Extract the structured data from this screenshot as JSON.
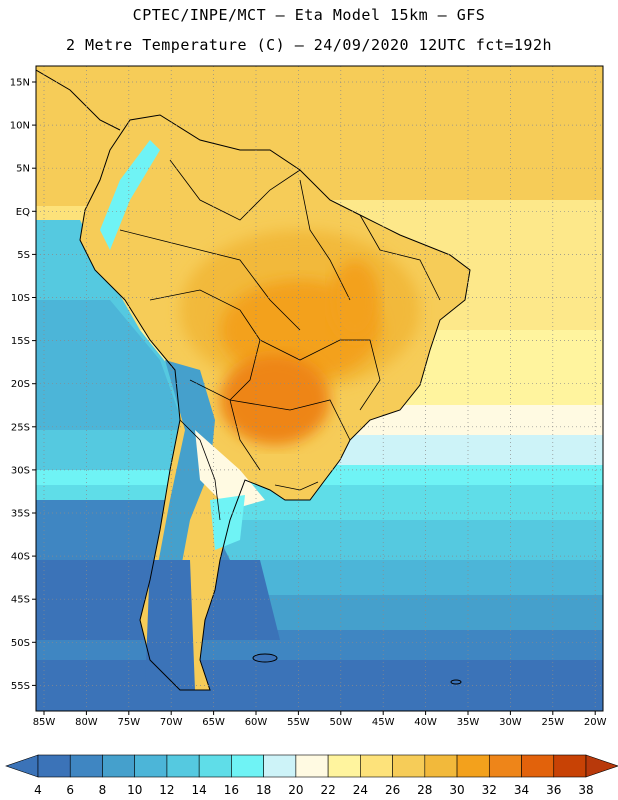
{
  "title_line1": "CPTEC/INPE/MCT –  Eta Model 15km – GFS",
  "title_line2": "2 Metre Temperature (C) – 24/09/2020 12UTC fct=192h",
  "map": {
    "lat_labels": [
      "15N",
      "10N",
      "5N",
      "EQ",
      "5S",
      "10S",
      "15S",
      "20S",
      "25S",
      "30S",
      "35S",
      "40S",
      "45S",
      "50S",
      "55S"
    ],
    "lon_labels": [
      "85W",
      "80W",
      "75W",
      "70W",
      "65W",
      "60W",
      "55W",
      "50W",
      "45W",
      "40W",
      "35W",
      "30W",
      "25W",
      "20W"
    ],
    "grid_style": "dotted"
  },
  "colorbar": {
    "values": [
      "4",
      "6",
      "8",
      "10",
      "12",
      "14",
      "16",
      "18",
      "20",
      "22",
      "24",
      "26",
      "28",
      "30",
      "32",
      "34",
      "36",
      "38"
    ],
    "colors": [
      "#3b73b8",
      "#3b73b8",
      "#3f86c2",
      "#45a0cc",
      "#4cb5d8",
      "#55c9e0",
      "#5fdde8",
      "#6ff3f5",
      "#cdf3f8",
      "#fffae2",
      "#fff49e",
      "#fde27a",
      "#f6cc58",
      "#f2b93b",
      "#f3a11c",
      "#ee8519",
      "#e2620b",
      "#c84205",
      "#b8390b"
    ]
  }
}
